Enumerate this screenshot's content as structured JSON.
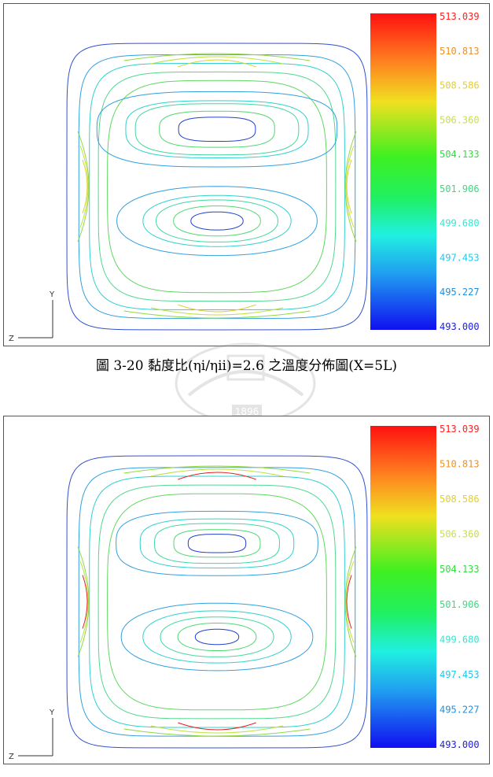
{
  "figures": [
    {
      "id": "top",
      "legend": {
        "values": [
          "513.039",
          "510.813",
          "508.586",
          "506.360",
          "504.133",
          "501.906",
          "499.680",
          "497.453",
          "495.227",
          "493.000"
        ],
        "colors": [
          "#ff2020",
          "#f09020",
          "#e0d030",
          "#c8e050",
          "#30e040",
          "#40d880",
          "#30e8d0",
          "#20c8f0",
          "#2090e0",
          "#2020e0"
        ]
      },
      "axes": {
        "y_label": "Y",
        "z_label": "Z"
      },
      "contours": {
        "levels": [
          {
            "color": "#3050d0",
            "a": 1.0,
            "b": 1.0,
            "n": 9
          },
          {
            "color": "#30a0e0",
            "a": 0.92,
            "b": 0.92,
            "n": 7
          },
          {
            "color": "#30d0d0",
            "a": 0.85,
            "b": 0.86,
            "n": 6
          },
          {
            "color": "#50d890",
            "a": 0.79,
            "b": 0.8,
            "n": 5
          },
          {
            "color": "#60d860",
            "a": 0.73,
            "b": 0.74,
            "n": 4
          }
        ],
        "upper_cell": [
          0.25,
          0.19,
          0.17,
          0.12,
          0.08
        ],
        "lower_cell": [
          0.23,
          0.17,
          0.14,
          0.1,
          0.06
        ],
        "peak_color": "#e0d030"
      }
    },
    {
      "id": "bottom",
      "legend": {
        "values": [
          "513.039",
          "510.813",
          "508.586",
          "506.360",
          "504.133",
          "501.906",
          "499.680",
          "497.453",
          "495.227",
          "493.000"
        ],
        "colors": [
          "#ff2020",
          "#f09020",
          "#e0d030",
          "#c8e050",
          "#30e040",
          "#40d880",
          "#30e8d0",
          "#20c8f0",
          "#2090e0",
          "#2020e0"
        ]
      },
      "axes": {
        "y_label": "Y",
        "z_label": "Z"
      },
      "contours": {
        "levels": [
          {
            "color": "#3050d0",
            "a": 1.0,
            "b": 1.0,
            "n": 9
          },
          {
            "color": "#30a0e0",
            "a": 0.92,
            "b": 0.92,
            "n": 7
          },
          {
            "color": "#30d0d0",
            "a": 0.85,
            "b": 0.86,
            "n": 6
          },
          {
            "color": "#50d890",
            "a": 0.79,
            "b": 0.8,
            "n": 5
          },
          {
            "color": "#60d860",
            "a": 0.73,
            "b": 0.74,
            "n": 4
          }
        ],
        "upper_cell": [
          0.21,
          0.16,
          0.13,
          0.09,
          0.06
        ],
        "lower_cell": [
          0.22,
          0.17,
          0.13,
          0.09,
          0.05
        ],
        "peak_color": "#e02020"
      }
    }
  ],
  "caption": "圖 3-20 黏度比(ηi/ηii)=2.6 之溫度分佈圖(X=5L)",
  "watermark_text": "1896"
}
